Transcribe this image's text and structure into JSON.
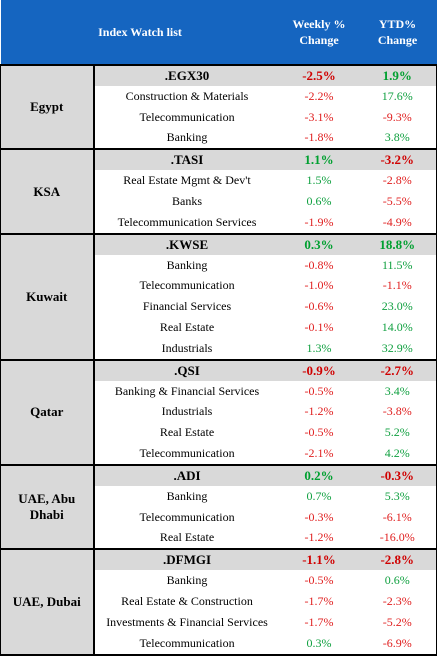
{
  "header": {
    "title": "Index Watch list",
    "weekly_label_line1": "Weekly %",
    "weekly_label_line2": "Change",
    "ytd_label_line1": "YTD%",
    "ytd_label_line2": "Change"
  },
  "groups": [
    {
      "country": "Egypt",
      "index": {
        "name": ".EGX30",
        "weekly": "-2.5%",
        "ytd": "1.9%"
      },
      "sectors": [
        {
          "name": "Construction & Materials",
          "weekly": "-2.2%",
          "ytd": "17.6%"
        },
        {
          "name": "Telecommunication",
          "weekly": "-3.1%",
          "ytd": "-9.3%"
        },
        {
          "name": "Banking",
          "weekly": "-1.8%",
          "ytd": "3.8%"
        }
      ]
    },
    {
      "country": "KSA",
      "index": {
        "name": ".TASI",
        "weekly": "1.1%",
        "ytd": "-3.2%"
      },
      "sectors": [
        {
          "name": "Real Estate Mgmt & Dev't",
          "weekly": "1.5%",
          "ytd": "-2.8%"
        },
        {
          "name": "Banks",
          "weekly": "0.6%",
          "ytd": "-5.5%"
        },
        {
          "name": "Telecommunication Services",
          "weekly": "-1.9%",
          "ytd": "-4.9%"
        }
      ]
    },
    {
      "country": "Kuwait",
      "index": {
        "name": ".KWSE",
        "weekly": "0.3%",
        "ytd": "18.8%"
      },
      "sectors": [
        {
          "name": "Banking",
          "weekly": "-0.8%",
          "ytd": "11.5%"
        },
        {
          "name": "Telecommunication",
          "weekly": "-1.0%",
          "ytd": "-1.1%"
        },
        {
          "name": "Financial Services",
          "weekly": "-0.6%",
          "ytd": "23.0%"
        },
        {
          "name": "Real Estate",
          "weekly": "-0.1%",
          "ytd": "14.0%"
        },
        {
          "name": "Industrials",
          "weekly": "1.3%",
          "ytd": "32.9%"
        }
      ]
    },
    {
      "country": "Qatar",
      "index": {
        "name": ".QSI",
        "weekly": "-0.9%",
        "ytd": "-2.7%"
      },
      "sectors": [
        {
          "name": "Banking & Financial Services",
          "weekly": "-0.5%",
          "ytd": "3.4%"
        },
        {
          "name": "Industrials",
          "weekly": "-1.2%",
          "ytd": "-3.8%"
        },
        {
          "name": "Real Estate",
          "weekly": "-0.5%",
          "ytd": "5.2%"
        },
        {
          "name": "Telecommunication",
          "weekly": "-2.1%",
          "ytd": "4.2%"
        }
      ]
    },
    {
      "country": "UAE, Abu Dhabi",
      "index": {
        "name": ".ADI",
        "weekly": "0.2%",
        "ytd": "-0.3%"
      },
      "sectors": [
        {
          "name": "Banking",
          "weekly": "0.7%",
          "ytd": "5.3%"
        },
        {
          "name": "Telecommunication",
          "weekly": "-0.3%",
          "ytd": "-6.1%"
        },
        {
          "name": "Real Estate",
          "weekly": "-1.2%",
          "ytd": "-16.0%"
        }
      ]
    },
    {
      "country": "UAE, Dubai",
      "index": {
        "name": ".DFMGI",
        "weekly": "-1.1%",
        "ytd": "-2.8%"
      },
      "sectors": [
        {
          "name": "Banking",
          "weekly": "-0.5%",
          "ytd": "0.6%"
        },
        {
          "name": "Real Estate & Construction",
          "weekly": "-1.7%",
          "ytd": "-2.3%"
        },
        {
          "name": "Investments & Financial Services",
          "weekly": "-1.7%",
          "ytd": "-5.2%"
        },
        {
          "name": "Telecommunication",
          "weekly": "0.3%",
          "ytd": "-6.9%"
        }
      ]
    }
  ],
  "colors": {
    "header_bg": "#1565c0",
    "index_row_bg": "#d9d9d9",
    "negative": "#d00000",
    "positive": "#00a030"
  }
}
